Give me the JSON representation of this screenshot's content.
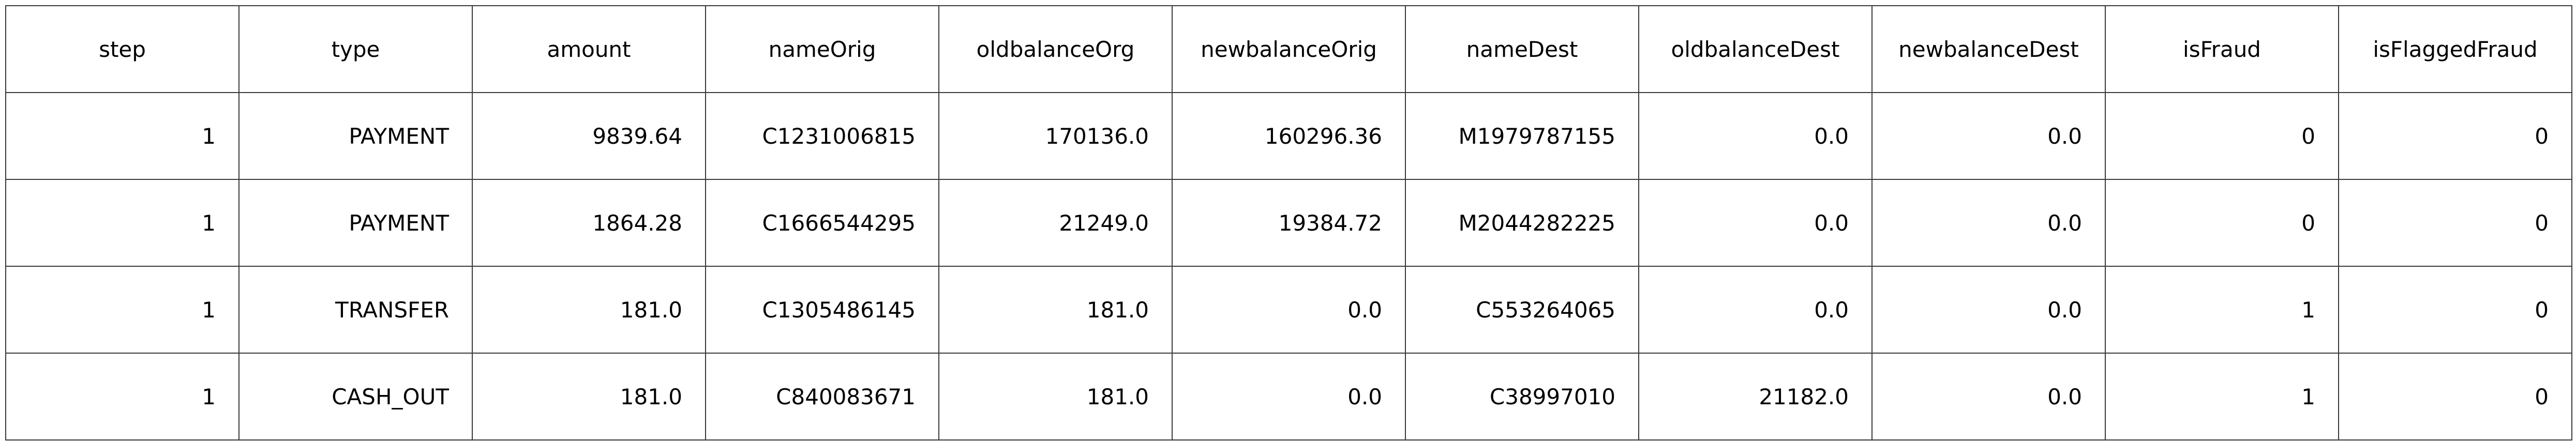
{
  "table": {
    "columns": [
      "step",
      "type",
      "amount",
      "nameOrig",
      "oldbalanceOrg",
      "newbalanceOrig",
      "nameDest",
      "oldbalanceDest",
      "newbalanceDest",
      "isFraud",
      "isFlaggedFraud"
    ],
    "rows": [
      [
        "1",
        "PAYMENT",
        "9839.64",
        "C1231006815",
        "170136.0",
        "160296.36",
        "M1979787155",
        "0.0",
        "0.0",
        "0",
        "0"
      ],
      [
        "1",
        "PAYMENT",
        "1864.28",
        "C1666544295",
        "21249.0",
        "19384.72",
        "M2044282225",
        "0.0",
        "0.0",
        "0",
        "0"
      ],
      [
        "1",
        "TRANSFER",
        "181.0",
        "C1305486145",
        "181.0",
        "0.0",
        "C553264065",
        "0.0",
        "0.0",
        "1",
        "0"
      ],
      [
        "1",
        "CASH_OUT",
        "181.0",
        "C840083671",
        "181.0",
        "0.0",
        "C38997010",
        "21182.0",
        "0.0",
        "1",
        "0"
      ]
    ]
  },
  "colors": {
    "border": "#3a3a3a",
    "text": "#000000",
    "background": "#ffffff"
  }
}
